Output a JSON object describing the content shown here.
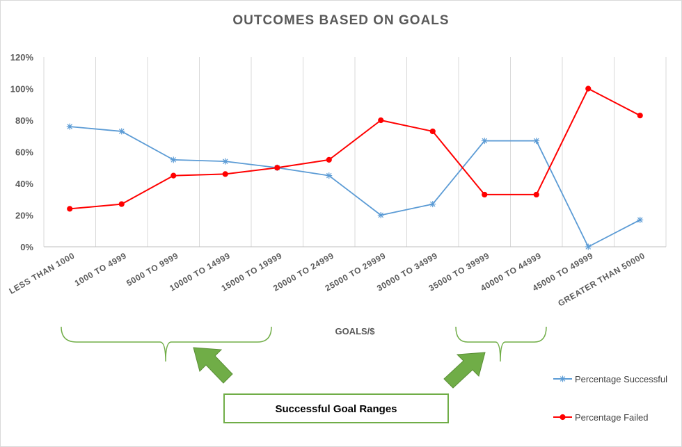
{
  "chart_data": {
    "type": "line",
    "title": "OUTCOMES BASED ON GOALS",
    "xlabel": "GOALS/$",
    "ylabel": "",
    "ylim": [
      0,
      1.2
    ],
    "yticks": [
      "0%",
      "20%",
      "40%",
      "60%",
      "80%",
      "100%",
      "120%"
    ],
    "grid": "vertical",
    "legend_position": "right",
    "categories": [
      "LESS THAN 1000",
      "1000 TO 4999",
      "5000 TO 9999",
      "10000 TO 14999",
      "15000 TO 19999",
      "20000 TO 24999",
      "25000 TO 29999",
      "30000 TO 34999",
      "35000 TO 39999",
      "40000 TO 44999",
      "45000 TO 49999",
      "GREATER THAN 50000"
    ],
    "series": [
      {
        "name": "Percentage Successful",
        "color": "#5b9bd5",
        "marker": "asterisk",
        "values": [
          0.76,
          0.73,
          0.55,
          0.54,
          0.5,
          0.45,
          0.2,
          0.27,
          0.67,
          0.67,
          0.0,
          0.17
        ]
      },
      {
        "name": "Percentage Failed",
        "color": "#ff0000",
        "marker": "circle",
        "values": [
          0.24,
          0.27,
          0.45,
          0.46,
          0.5,
          0.55,
          0.8,
          0.73,
          0.33,
          0.33,
          1.0,
          0.83
        ]
      }
    ],
    "annotation": {
      "text": "Successful Goal Ranges",
      "brace_color": "#70ad47",
      "arrow_color": "#70ad47"
    }
  }
}
